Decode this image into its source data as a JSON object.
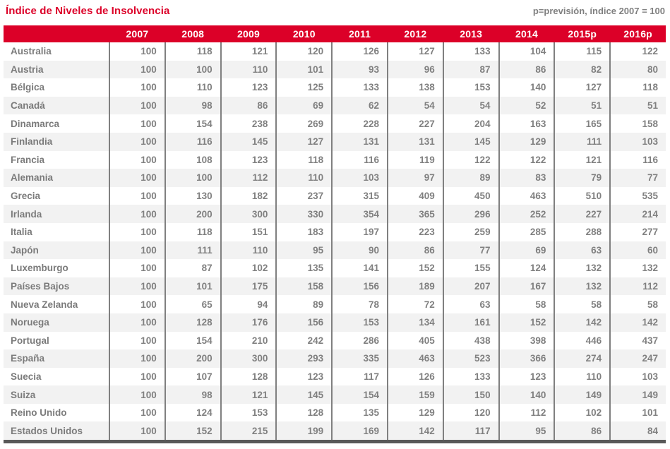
{
  "header": {
    "title": "Índice de Niveles de Insolvencia",
    "note": "p=previsión, índice 2007 = 100"
  },
  "colors": {
    "accent_red": "#dc0028",
    "header_text": "#ffffff",
    "value_text": "#808080",
    "country_text": "#7b7b7b",
    "row_stripe": "#f2f2f2",
    "column_border": "#808080",
    "bottom_bar": "#595959"
  },
  "chart_data": {
    "type": "table",
    "title": "Índice de Niveles de Insolvencia",
    "note": "p=previsión, índice 2007 = 100",
    "columns": [
      "2007",
      "2008",
      "2009",
      "2010",
      "2011",
      "2012",
      "2013",
      "2014",
      "2015p",
      "2016p"
    ],
    "rows": [
      {
        "country": "Australia",
        "values": [
          100,
          118,
          121,
          120,
          126,
          127,
          133,
          104,
          115,
          122
        ]
      },
      {
        "country": "Austria",
        "values": [
          100,
          100,
          110,
          101,
          93,
          96,
          87,
          86,
          82,
          80
        ]
      },
      {
        "country": "Bélgica",
        "values": [
          100,
          110,
          123,
          125,
          133,
          138,
          153,
          140,
          127,
          118
        ]
      },
      {
        "country": "Canadá",
        "values": [
          100,
          98,
          86,
          69,
          62,
          54,
          54,
          52,
          51,
          51
        ]
      },
      {
        "country": "Dinamarca",
        "values": [
          100,
          154,
          238,
          269,
          228,
          227,
          204,
          163,
          165,
          158
        ]
      },
      {
        "country": "Finlandia",
        "values": [
          100,
          116,
          145,
          127,
          131,
          131,
          145,
          129,
          111,
          103
        ]
      },
      {
        "country": "Francia",
        "values": [
          100,
          108,
          123,
          118,
          116,
          119,
          122,
          122,
          121,
          116
        ]
      },
      {
        "country": "Alemania",
        "values": [
          100,
          100,
          112,
          110,
          103,
          97,
          89,
          83,
          79,
          77
        ]
      },
      {
        "country": "Grecia",
        "values": [
          100,
          130,
          182,
          237,
          315,
          409,
          450,
          463,
          510,
          535
        ]
      },
      {
        "country": "Irlanda",
        "values": [
          100,
          200,
          300,
          330,
          354,
          365,
          296,
          252,
          227,
          214
        ]
      },
      {
        "country": "Italia",
        "values": [
          100,
          118,
          151,
          183,
          197,
          223,
          259,
          285,
          288,
          277
        ]
      },
      {
        "country": "Japón",
        "values": [
          100,
          111,
          110,
          95,
          90,
          86,
          77,
          69,
          63,
          60
        ]
      },
      {
        "country": "Luxemburgo",
        "values": [
          100,
          87,
          102,
          135,
          141,
          152,
          155,
          124,
          132,
          132
        ]
      },
      {
        "country": "Países Bajos",
        "values": [
          100,
          101,
          175,
          158,
          156,
          189,
          207,
          167,
          132,
          112
        ]
      },
      {
        "country": "Nueva Zelanda",
        "values": [
          100,
          65,
          94,
          89,
          78,
          72,
          63,
          58,
          58,
          58
        ]
      },
      {
        "country": "Noruega",
        "values": [
          100,
          128,
          176,
          156,
          153,
          134,
          161,
          152,
          142,
          142
        ]
      },
      {
        "country": "Portugal",
        "values": [
          100,
          154,
          210,
          242,
          286,
          405,
          438,
          398,
          446,
          437
        ]
      },
      {
        "country": "España",
        "values": [
          100,
          200,
          300,
          293,
          335,
          463,
          523,
          366,
          274,
          247
        ]
      },
      {
        "country": "Suecia",
        "values": [
          100,
          107,
          128,
          123,
          117,
          126,
          133,
          123,
          110,
          103
        ]
      },
      {
        "country": "Suiza",
        "values": [
          100,
          98,
          121,
          145,
          154,
          159,
          150,
          140,
          149,
          149
        ]
      },
      {
        "country": "Reino Unido",
        "values": [
          100,
          124,
          153,
          128,
          135,
          129,
          120,
          112,
          102,
          101
        ]
      },
      {
        "country": "Estados Unidos",
        "values": [
          100,
          152,
          215,
          199,
          169,
          142,
          117,
          95,
          86,
          84
        ]
      }
    ]
  }
}
